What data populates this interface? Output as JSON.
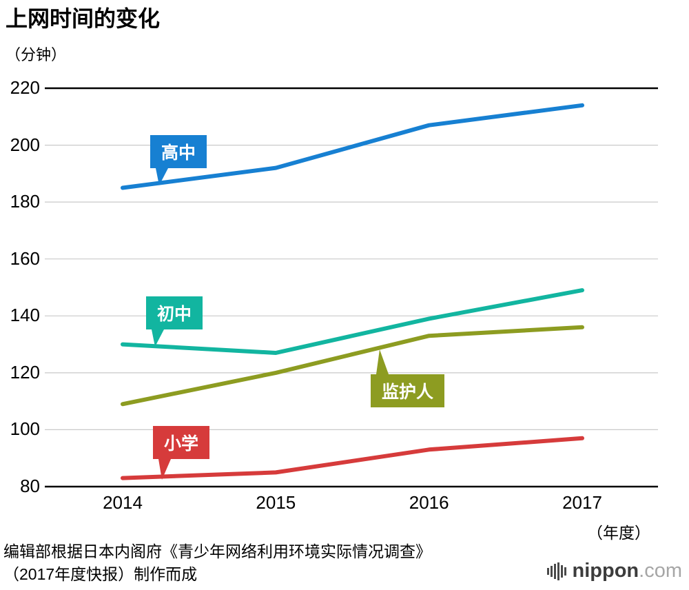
{
  "title": "上网时间的变化",
  "y_unit_label": "（分钟）",
  "x_unit_label": "（年度）",
  "source_line1": "编辑部根据日本内阁府《青少年网络利用环境实际情况调查》",
  "source_line2": "（2017年度快报）制作而成",
  "logo": {
    "name": "nippon",
    "suffix": ".com"
  },
  "chart_data": {
    "type": "line",
    "title": "上网时间的变化",
    "xlabel": "年度",
    "ylabel": "分钟",
    "categories": [
      "2014",
      "2015",
      "2016",
      "2017"
    ],
    "ylim": [
      80,
      220
    ],
    "yticks": [
      80,
      100,
      120,
      140,
      160,
      180,
      200,
      220
    ],
    "grid": true,
    "legend_position": "inline-callouts",
    "series": [
      {
        "name": "高中",
        "color": "#1780d2",
        "values": [
          185,
          192,
          207,
          214
        ]
      },
      {
        "name": "初中",
        "color": "#12b5a0",
        "values": [
          130,
          127,
          139,
          149
        ]
      },
      {
        "name": "监护人",
        "color": "#8d9c21",
        "values": [
          109,
          120,
          133,
          136
        ]
      },
      {
        "name": "小学",
        "color": "#d63b3b",
        "values": [
          83,
          85,
          93,
          97
        ]
      }
    ]
  }
}
